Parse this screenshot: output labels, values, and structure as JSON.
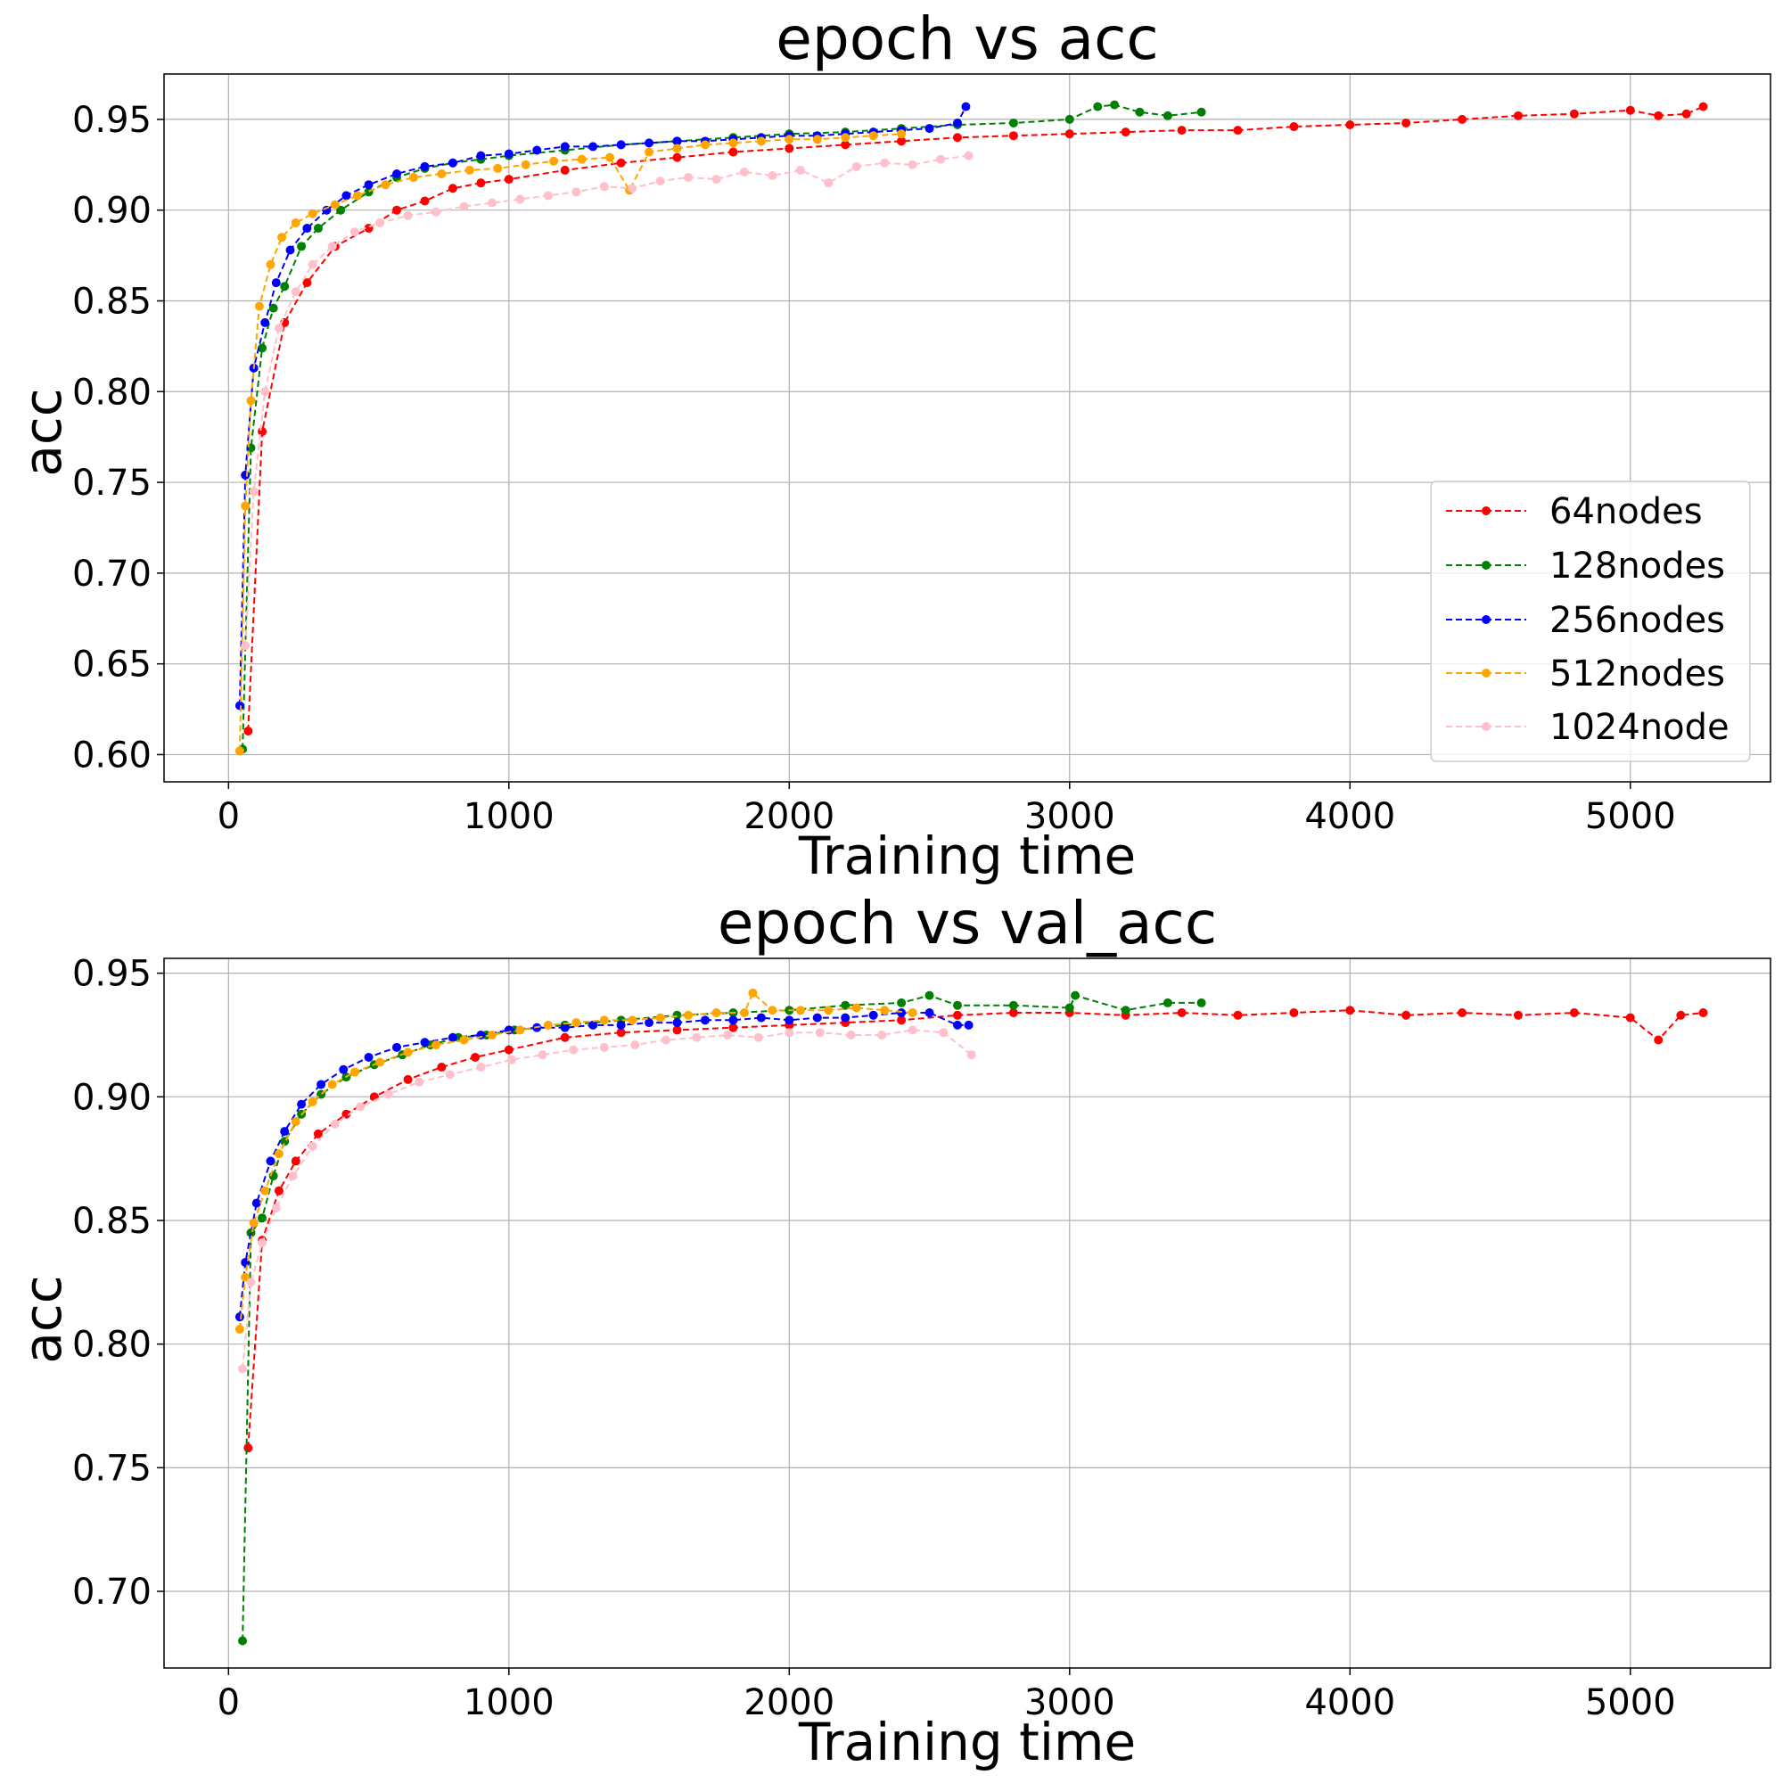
{
  "chart_data": [
    {
      "type": "line",
      "title": "epoch vs acc",
      "xlabel": "Training time",
      "ylabel": "acc",
      "xlim": [
        -230,
        5500
      ],
      "ylim": [
        0.585,
        0.975
      ],
      "xticks": [
        0,
        1000,
        2000,
        3000,
        4000,
        5000
      ],
      "yticks": [
        0.6,
        0.65,
        0.7,
        0.75,
        0.8,
        0.85,
        0.9,
        0.95
      ],
      "grid": true,
      "legend_position": "lower-right",
      "series": [
        {
          "name": "64nodes",
          "color": "#ff0000",
          "x": [
            70,
            120,
            200,
            280,
            380,
            500,
            600,
            700,
            800,
            900,
            1000,
            1200,
            1400,
            1600,
            1800,
            2000,
            2200,
            2400,
            2600,
            2800,
            3000,
            3200,
            3400,
            3600,
            3800,
            4000,
            4200,
            4400,
            4600,
            4800,
            5000,
            5100,
            5200,
            5260
          ],
          "y": [
            0.613,
            0.778,
            0.838,
            0.86,
            0.88,
            0.89,
            0.9,
            0.905,
            0.912,
            0.915,
            0.917,
            0.922,
            0.926,
            0.929,
            0.932,
            0.934,
            0.936,
            0.938,
            0.94,
            0.941,
            0.942,
            0.943,
            0.944,
            0.944,
            0.946,
            0.947,
            0.948,
            0.95,
            0.952,
            0.953,
            0.955,
            0.952,
            0.953,
            0.957
          ]
        },
        {
          "name": "128nodes",
          "color": "#008000",
          "x": [
            50,
            80,
            120,
            160,
            200,
            260,
            320,
            400,
            500,
            600,
            700,
            800,
            900,
            1000,
            1200,
            1400,
            1600,
            1800,
            2000,
            2200,
            2400,
            2600,
            2800,
            3000,
            3100,
            3160,
            3250,
            3350,
            3470
          ],
          "y": [
            0.603,
            0.769,
            0.824,
            0.846,
            0.858,
            0.88,
            0.89,
            0.9,
            0.91,
            0.918,
            0.923,
            0.926,
            0.928,
            0.93,
            0.933,
            0.936,
            0.938,
            0.94,
            0.942,
            0.943,
            0.945,
            0.947,
            0.948,
            0.95,
            0.957,
            0.958,
            0.954,
            0.952,
            0.954
          ]
        },
        {
          "name": "256nodes",
          "color": "#0000ff",
          "x": [
            40,
            60,
            90,
            130,
            170,
            220,
            280,
            350,
            420,
            500,
            600,
            700,
            800,
            900,
            1000,
            1100,
            1200,
            1300,
            1400,
            1500,
            1600,
            1700,
            1800,
            1900,
            2000,
            2100,
            2200,
            2300,
            2400,
            2500,
            2600,
            2630
          ],
          "y": [
            0.627,
            0.754,
            0.813,
            0.838,
            0.86,
            0.878,
            0.89,
            0.9,
            0.908,
            0.914,
            0.92,
            0.924,
            0.926,
            0.93,
            0.931,
            0.933,
            0.935,
            0.935,
            0.936,
            0.937,
            0.938,
            0.938,
            0.939,
            0.94,
            0.941,
            0.941,
            0.942,
            0.943,
            0.944,
            0.945,
            0.948,
            0.957
          ]
        },
        {
          "name": "512nodes",
          "color": "#ffa500",
          "x": [
            40,
            60,
            80,
            110,
            150,
            190,
            240,
            300,
            380,
            460,
            560,
            660,
            760,
            860,
            960,
            1060,
            1160,
            1260,
            1360,
            1430,
            1500,
            1600,
            1700,
            1800,
            1900,
            2000,
            2100,
            2200,
            2300,
            2400
          ],
          "y": [
            0.602,
            0.737,
            0.795,
            0.847,
            0.87,
            0.885,
            0.893,
            0.898,
            0.903,
            0.908,
            0.914,
            0.918,
            0.92,
            0.922,
            0.923,
            0.925,
            0.927,
            0.928,
            0.929,
            0.911,
            0.932,
            0.934,
            0.936,
            0.937,
            0.938,
            0.939,
            0.939,
            0.94,
            0.941,
            0.942
          ]
        },
        {
          "name": "1024node",
          "color": "#ffc0cb",
          "x": [
            60,
            90,
            130,
            180,
            240,
            300,
            370,
            450,
            540,
            640,
            740,
            840,
            940,
            1040,
            1140,
            1240,
            1340,
            1440,
            1540,
            1640,
            1740,
            1840,
            1940,
            2040,
            2140,
            2240,
            2340,
            2440,
            2540,
            2640
          ],
          "y": [
            0.66,
            0.745,
            0.8,
            0.835,
            0.855,
            0.87,
            0.88,
            0.888,
            0.893,
            0.897,
            0.899,
            0.902,
            0.904,
            0.906,
            0.908,
            0.91,
            0.913,
            0.912,
            0.916,
            0.918,
            0.917,
            0.921,
            0.919,
            0.922,
            0.915,
            0.924,
            0.926,
            0.925,
            0.928,
            0.93
          ]
        }
      ]
    },
    {
      "type": "line",
      "title": "epoch vs val_acc",
      "xlabel": "Training time",
      "ylabel": "acc",
      "xlim": [
        -230,
        5500
      ],
      "ylim": [
        0.669,
        0.956
      ],
      "xticks": [
        0,
        1000,
        2000,
        3000,
        4000,
        5000
      ],
      "yticks": [
        0.7,
        0.75,
        0.8,
        0.85,
        0.9,
        0.95
      ],
      "grid": true,
      "series": [
        {
          "name": "64nodes",
          "color": "#ff0000",
          "x": [
            70,
            120,
            180,
            240,
            320,
            420,
            520,
            640,
            760,
            880,
            1000,
            1200,
            1400,
            1600,
            1800,
            2000,
            2200,
            2400,
            2600,
            2800,
            3000,
            3200,
            3400,
            3600,
            3800,
            4000,
            4200,
            4400,
            4600,
            4800,
            5000,
            5100,
            5180,
            5260
          ],
          "y": [
            0.758,
            0.842,
            0.862,
            0.874,
            0.885,
            0.893,
            0.9,
            0.907,
            0.912,
            0.916,
            0.919,
            0.924,
            0.926,
            0.927,
            0.928,
            0.929,
            0.93,
            0.931,
            0.933,
            0.934,
            0.934,
            0.933,
            0.934,
            0.933,
            0.934,
            0.935,
            0.933,
            0.934,
            0.933,
            0.934,
            0.932,
            0.923,
            0.933,
            0.934
          ]
        },
        {
          "name": "128nodes",
          "color": "#008000",
          "x": [
            50,
            80,
            120,
            160,
            200,
            260,
            330,
            420,
            520,
            620,
            720,
            820,
            920,
            1020,
            1200,
            1400,
            1600,
            1800,
            2000,
            2200,
            2400,
            2500,
            2600,
            2800,
            3000,
            3020,
            3200,
            3350,
            3470
          ],
          "y": [
            0.68,
            0.845,
            0.851,
            0.868,
            0.882,
            0.893,
            0.901,
            0.908,
            0.913,
            0.917,
            0.921,
            0.924,
            0.925,
            0.927,
            0.929,
            0.931,
            0.933,
            0.934,
            0.935,
            0.937,
            0.938,
            0.941,
            0.937,
            0.937,
            0.936,
            0.941,
            0.935,
            0.938,
            0.938
          ]
        },
        {
          "name": "256nodes",
          "color": "#0000ff",
          "x": [
            40,
            60,
            100,
            150,
            200,
            260,
            330,
            410,
            500,
            600,
            700,
            800,
            900,
            1000,
            1100,
            1200,
            1300,
            1400,
            1500,
            1600,
            1700,
            1800,
            1900,
            2000,
            2100,
            2200,
            2300,
            2400,
            2500,
            2600,
            2640
          ],
          "y": [
            0.811,
            0.833,
            0.857,
            0.874,
            0.886,
            0.897,
            0.905,
            0.911,
            0.916,
            0.92,
            0.922,
            0.924,
            0.925,
            0.927,
            0.928,
            0.928,
            0.929,
            0.929,
            0.93,
            0.93,
            0.931,
            0.931,
            0.932,
            0.931,
            0.932,
            0.932,
            0.933,
            0.934,
            0.934,
            0.929,
            0.929
          ]
        },
        {
          "name": "512nodes",
          "color": "#ffa500",
          "x": [
            40,
            60,
            90,
            130,
            180,
            240,
            300,
            370,
            450,
            540,
            640,
            740,
            840,
            940,
            1040,
            1140,
            1240,
            1340,
            1440,
            1540,
            1640,
            1740,
            1840,
            1870,
            1940,
            2040,
            2140,
            2240,
            2340,
            2440
          ],
          "y": [
            0.806,
            0.827,
            0.849,
            0.862,
            0.877,
            0.89,
            0.898,
            0.905,
            0.91,
            0.914,
            0.918,
            0.921,
            0.923,
            0.925,
            0.927,
            0.929,
            0.93,
            0.931,
            0.931,
            0.932,
            0.933,
            0.934,
            0.934,
            0.942,
            0.935,
            0.935,
            0.935,
            0.936,
            0.935,
            0.934
          ]
        },
        {
          "name": "1024node",
          "color": "#ffc0cb",
          "x": [
            50,
            80,
            120,
            170,
            230,
            300,
            380,
            470,
            570,
            680,
            790,
            900,
            1010,
            1120,
            1230,
            1340,
            1450,
            1560,
            1670,
            1780,
            1890,
            2000,
            2110,
            2220,
            2330,
            2440,
            2550,
            2650
          ],
          "y": [
            0.79,
            0.825,
            0.841,
            0.855,
            0.868,
            0.88,
            0.889,
            0.896,
            0.901,
            0.906,
            0.909,
            0.912,
            0.915,
            0.917,
            0.919,
            0.92,
            0.921,
            0.923,
            0.924,
            0.925,
            0.924,
            0.926,
            0.926,
            0.925,
            0.925,
            0.927,
            0.926,
            0.917
          ]
        }
      ]
    }
  ]
}
